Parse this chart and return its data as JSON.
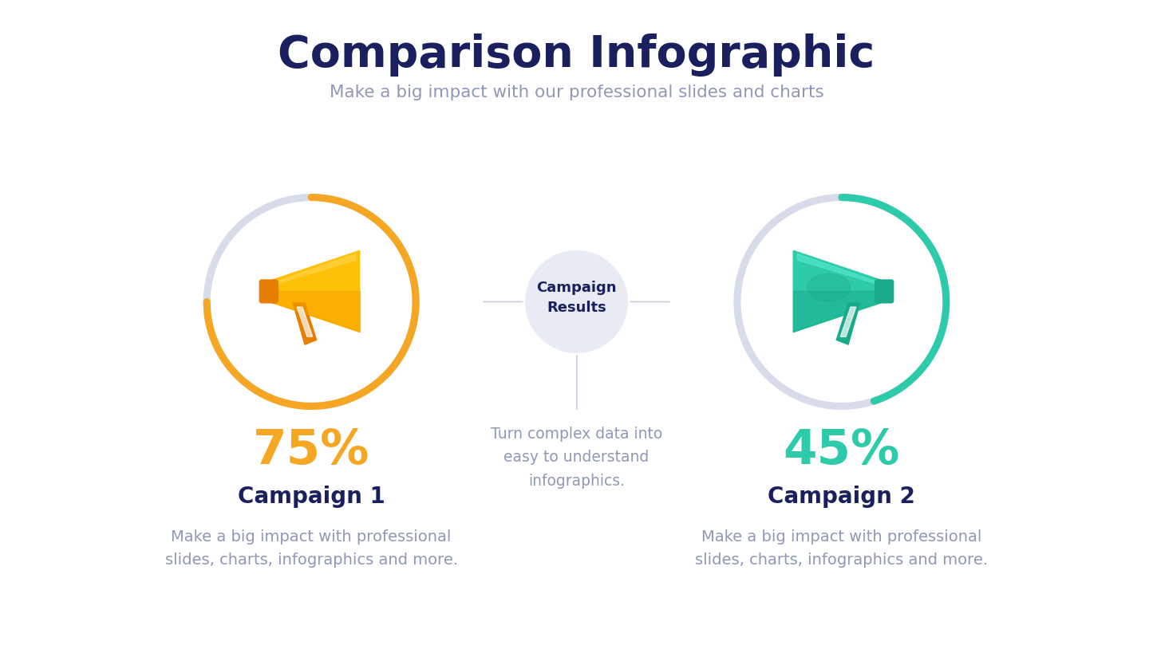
{
  "title": "Comparison Infographic",
  "subtitle": "Make a big impact with our professional slides and charts",
  "title_color": "#1a1f5e",
  "subtitle_color": "#9098b8",
  "bg_color": "#ffffff",
  "campaign1_pct": 75,
  "campaign1_label": "Campaign 1",
  "campaign1_desc": "Make a big impact with professional\nslides, charts, infographics and more.",
  "campaign1_pct_color": "#F5A623",
  "campaign1_ring_color": "#F5A623",
  "campaign1_ring_bg_color": "#d8dcea",
  "campaign1_label_color": "#1a1f5e",
  "campaign1_desc_color": "#9098b8",
  "campaign2_pct": 45,
  "campaign2_label": "Campaign 2",
  "campaign2_desc": "Make a big impact with professional\nslides, charts, infographics and more.",
  "campaign2_pct_color": "#2ecbaa",
  "campaign2_ring_color": "#2ecbaa",
  "campaign2_ring_bg_color": "#d8dcea",
  "campaign2_label_color": "#1a1f5e",
  "campaign2_desc_color": "#9098b8",
  "center_title": "Campaign\nResults",
  "center_title_color": "#1a1f5e",
  "center_desc": "Turn complex data into\neasy to understand\ninfographics.",
  "center_desc_color": "#9098b8",
  "center_circle_color": "#e8ebf4",
  "ring_lw": 6.5,
  "ring_lw_inner": 130
}
